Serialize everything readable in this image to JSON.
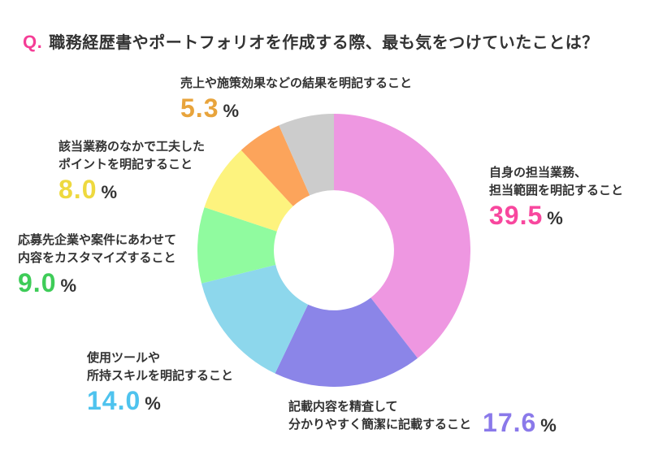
{
  "title": {
    "prefix": "Q.",
    "prefix_color": "#F53D96",
    "text": "職務経歴書やポートフォリオを作成する際、最も気をつけていたことは？"
  },
  "chart_data": {
    "type": "pie",
    "subtype": "donut",
    "title": "職務経歴書やポートフォリオを作成する際、最も気をつけていたことは？",
    "direction": "clockwise",
    "start_angle_deg": 0,
    "inner_radius_ratio": 0.44,
    "legend": "none",
    "segments": [
      {
        "label": "自身の担当業務、担当範囲を明記すること",
        "value": 39.5,
        "color": "#EE97E1"
      },
      {
        "label": "記載内容を精査して分かりやすく簡潔に記載すること",
        "value": 17.6,
        "color": "#8B85E8"
      },
      {
        "label": "使用ツールや所持スキルを明記すること",
        "value": 14.0,
        "color": "#8DD7EC"
      },
      {
        "label": "応募先企業や案件にあわせて内容をカスタマイズすること",
        "value": 9.0,
        "color": "#90FB9F"
      },
      {
        "label": "該当業務のなかで工夫したポイントを明記すること",
        "value": 8.0,
        "color": "#FDF37E"
      },
      {
        "label": "売上や施策効果などの結果を明記すること",
        "value": 5.3,
        "color": "#FCA45B"
      },
      {
        "label": "",
        "value": 6.6,
        "color": "#CCCCCC"
      }
    ]
  },
  "callouts": [
    {
      "lines": [
        "売上や施策効果などの結果を明記すること"
      ],
      "value": "5.3",
      "unit": "%",
      "value_color": "#E8A43C"
    },
    {
      "lines": [
        "該当業務のなかで工夫した",
        "ポイントを明記すること"
      ],
      "value": "8.0",
      "unit": "%",
      "value_color": "#EED93F"
    },
    {
      "lines": [
        "応募先企業や案件にあわせて",
        "内容をカスタマイズすること"
      ],
      "value": "9.0",
      "unit": "%",
      "value_color": "#3ECC58"
    },
    {
      "lines": [
        "使用ツールや",
        "所持スキルを明記すること"
      ],
      "value": "14.0",
      "unit": "%",
      "value_color": "#4EC3EE"
    },
    {
      "lines": [
        "記載内容を精査して",
        "分かりやすく簡潔に記載すること"
      ],
      "value": "17.6",
      "unit": "%",
      "value_color": "#8A79EA"
    },
    {
      "lines": [
        "自身の担当業務、",
        "担当範囲を明記すること"
      ],
      "value": "39.5",
      "unit": "%",
      "value_color": "#F8479E"
    }
  ]
}
